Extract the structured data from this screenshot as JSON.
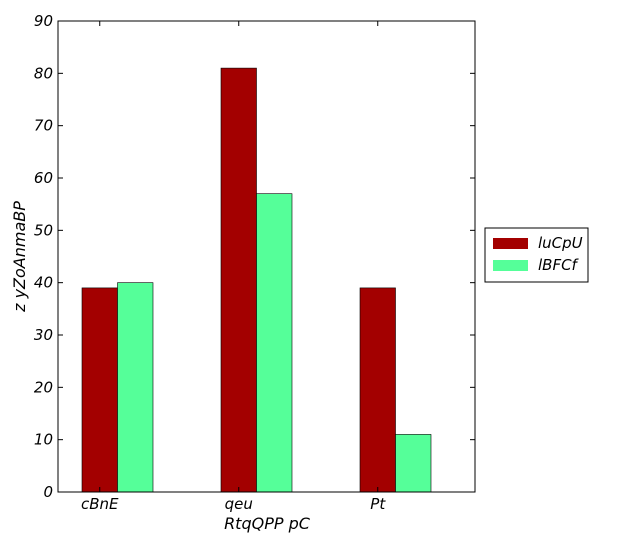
{
  "chart_data": {
    "type": "bar",
    "categories": [
      "cBnE",
      "qeu",
      "Pt"
    ],
    "series": [
      {
        "name": "luCpU",
        "color": "#a30000",
        "values": [
          39,
          81,
          39
        ]
      },
      {
        "name": "lBFCf",
        "color": "#55ff99",
        "values": [
          40,
          57,
          11
        ]
      }
    ],
    "xlabel": "RtqQPP pC",
    "ylabel": "z yZoAnmaBP",
    "ylim": [
      0,
      90
    ],
    "yticks": [
      0,
      10,
      20,
      30,
      40,
      50,
      60,
      70,
      80,
      90
    ],
    "grid": false,
    "legend_position": "right, outside plot"
  }
}
